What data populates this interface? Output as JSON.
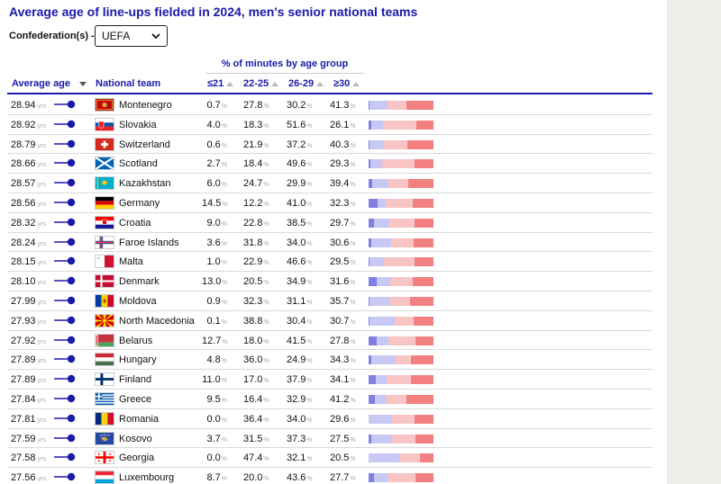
{
  "title": "Average age of line-ups fielded in 2024, men's senior national teams",
  "filter": {
    "label": "Confederation(s) ->",
    "value": "UEFA"
  },
  "group_header": "% of minutes by age group",
  "columns": {
    "avg": "Average age",
    "team": "National team",
    "u21": "≤21",
    "a22_25": "22-25",
    "a26_29": "26-29",
    "o30": "≥30"
  },
  "unit_yrs": "yrs",
  "unit_pct": "%",
  "colors": {
    "u21": "#8080e0",
    "a22_25": "#c8c8f4",
    "a26_29": "#f8c4c4",
    "o30": "#f28080",
    "accent": "#1a1aaa"
  },
  "rows": [
    {
      "avg": "28.94",
      "team": "Montenegro",
      "flag": "montenegro-flag-icon",
      "u21": "0.7",
      "a22_25": "27.8",
      "a26_29": "30.2",
      "o30": "41.3"
    },
    {
      "avg": "28.92",
      "team": "Slovakia",
      "flag": "slovakia-flag-icon",
      "u21": "4.0",
      "a22_25": "18.3",
      "a26_29": "51.6",
      "o30": "26.1"
    },
    {
      "avg": "28.79",
      "team": "Switzerland",
      "flag": "switzerland-flag-icon",
      "u21": "0.6",
      "a22_25": "21.9",
      "a26_29": "37.2",
      "o30": "40.3"
    },
    {
      "avg": "28.66",
      "team": "Scotland",
      "flag": "scotland-flag-icon",
      "u21": "2.7",
      "a22_25": "18.4",
      "a26_29": "49.6",
      "o30": "29.3"
    },
    {
      "avg": "28.57",
      "team": "Kazakhstan",
      "flag": "kazakhstan-flag-icon",
      "u21": "6.0",
      "a22_25": "24.7",
      "a26_29": "29.9",
      "o30": "39.4"
    },
    {
      "avg": "28.56",
      "team": "Germany",
      "flag": "germany-flag-icon",
      "u21": "14.5",
      "a22_25": "12.2",
      "a26_29": "41.0",
      "o30": "32.3"
    },
    {
      "avg": "28.32",
      "team": "Croatia",
      "flag": "croatia-flag-icon",
      "u21": "9.0",
      "a22_25": "22.8",
      "a26_29": "38.5",
      "o30": "29.7"
    },
    {
      "avg": "28.24",
      "team": "Faroe Islands",
      "flag": "faroe-islands-flag-icon",
      "u21": "3.6",
      "a22_25": "31.8",
      "a26_29": "34.0",
      "o30": "30.6"
    },
    {
      "avg": "28.15",
      "team": "Malta",
      "flag": "malta-flag-icon",
      "u21": "1.0",
      "a22_25": "22.9",
      "a26_29": "46.6",
      "o30": "29.5"
    },
    {
      "avg": "28.10",
      "team": "Denmark",
      "flag": "denmark-flag-icon",
      "u21": "13.0",
      "a22_25": "20.5",
      "a26_29": "34.9",
      "o30": "31.6"
    },
    {
      "avg": "27.99",
      "team": "Moldova",
      "flag": "moldova-flag-icon",
      "u21": "0.9",
      "a22_25": "32.3",
      "a26_29": "31.1",
      "o30": "35.7"
    },
    {
      "avg": "27.93",
      "team": "North Macedonia",
      "flag": "north-macedonia-flag-icon",
      "u21": "0.1",
      "a22_25": "38.8",
      "a26_29": "30.4",
      "o30": "30.7"
    },
    {
      "avg": "27.92",
      "team": "Belarus",
      "flag": "belarus-flag-icon",
      "u21": "12.7",
      "a22_25": "18.0",
      "a26_29": "41.5",
      "o30": "27.8"
    },
    {
      "avg": "27.89",
      "team": "Hungary",
      "flag": "hungary-flag-icon",
      "u21": "4.8",
      "a22_25": "36.0",
      "a26_29": "24.9",
      "o30": "34.3"
    },
    {
      "avg": "27.89",
      "team": "Finland",
      "flag": "finland-flag-icon",
      "u21": "11.0",
      "a22_25": "17.0",
      "a26_29": "37.9",
      "o30": "34.1"
    },
    {
      "avg": "27.84",
      "team": "Greece",
      "flag": "greece-flag-icon",
      "u21": "9.5",
      "a22_25": "16.4",
      "a26_29": "32.9",
      "o30": "41.2"
    },
    {
      "avg": "27.81",
      "team": "Romania",
      "flag": "romania-flag-icon",
      "u21": "0.0",
      "a22_25": "36.4",
      "a26_29": "34.0",
      "o30": "29.6"
    },
    {
      "avg": "27.59",
      "team": "Kosovo",
      "flag": "kosovo-flag-icon",
      "u21": "3.7",
      "a22_25": "31.5",
      "a26_29": "37.3",
      "o30": "27.5"
    },
    {
      "avg": "27.58",
      "team": "Georgia",
      "flag": "georgia-flag-icon",
      "u21": "0.0",
      "a22_25": "47.4",
      "a26_29": "32.1",
      "o30": "20.5"
    },
    {
      "avg": "27.56",
      "team": "Luxembourg",
      "flag": "luxembourg-flag-icon",
      "u21": "8.7",
      "a22_25": "20.0",
      "a26_29": "43.6",
      "o30": "27.7"
    }
  ]
}
